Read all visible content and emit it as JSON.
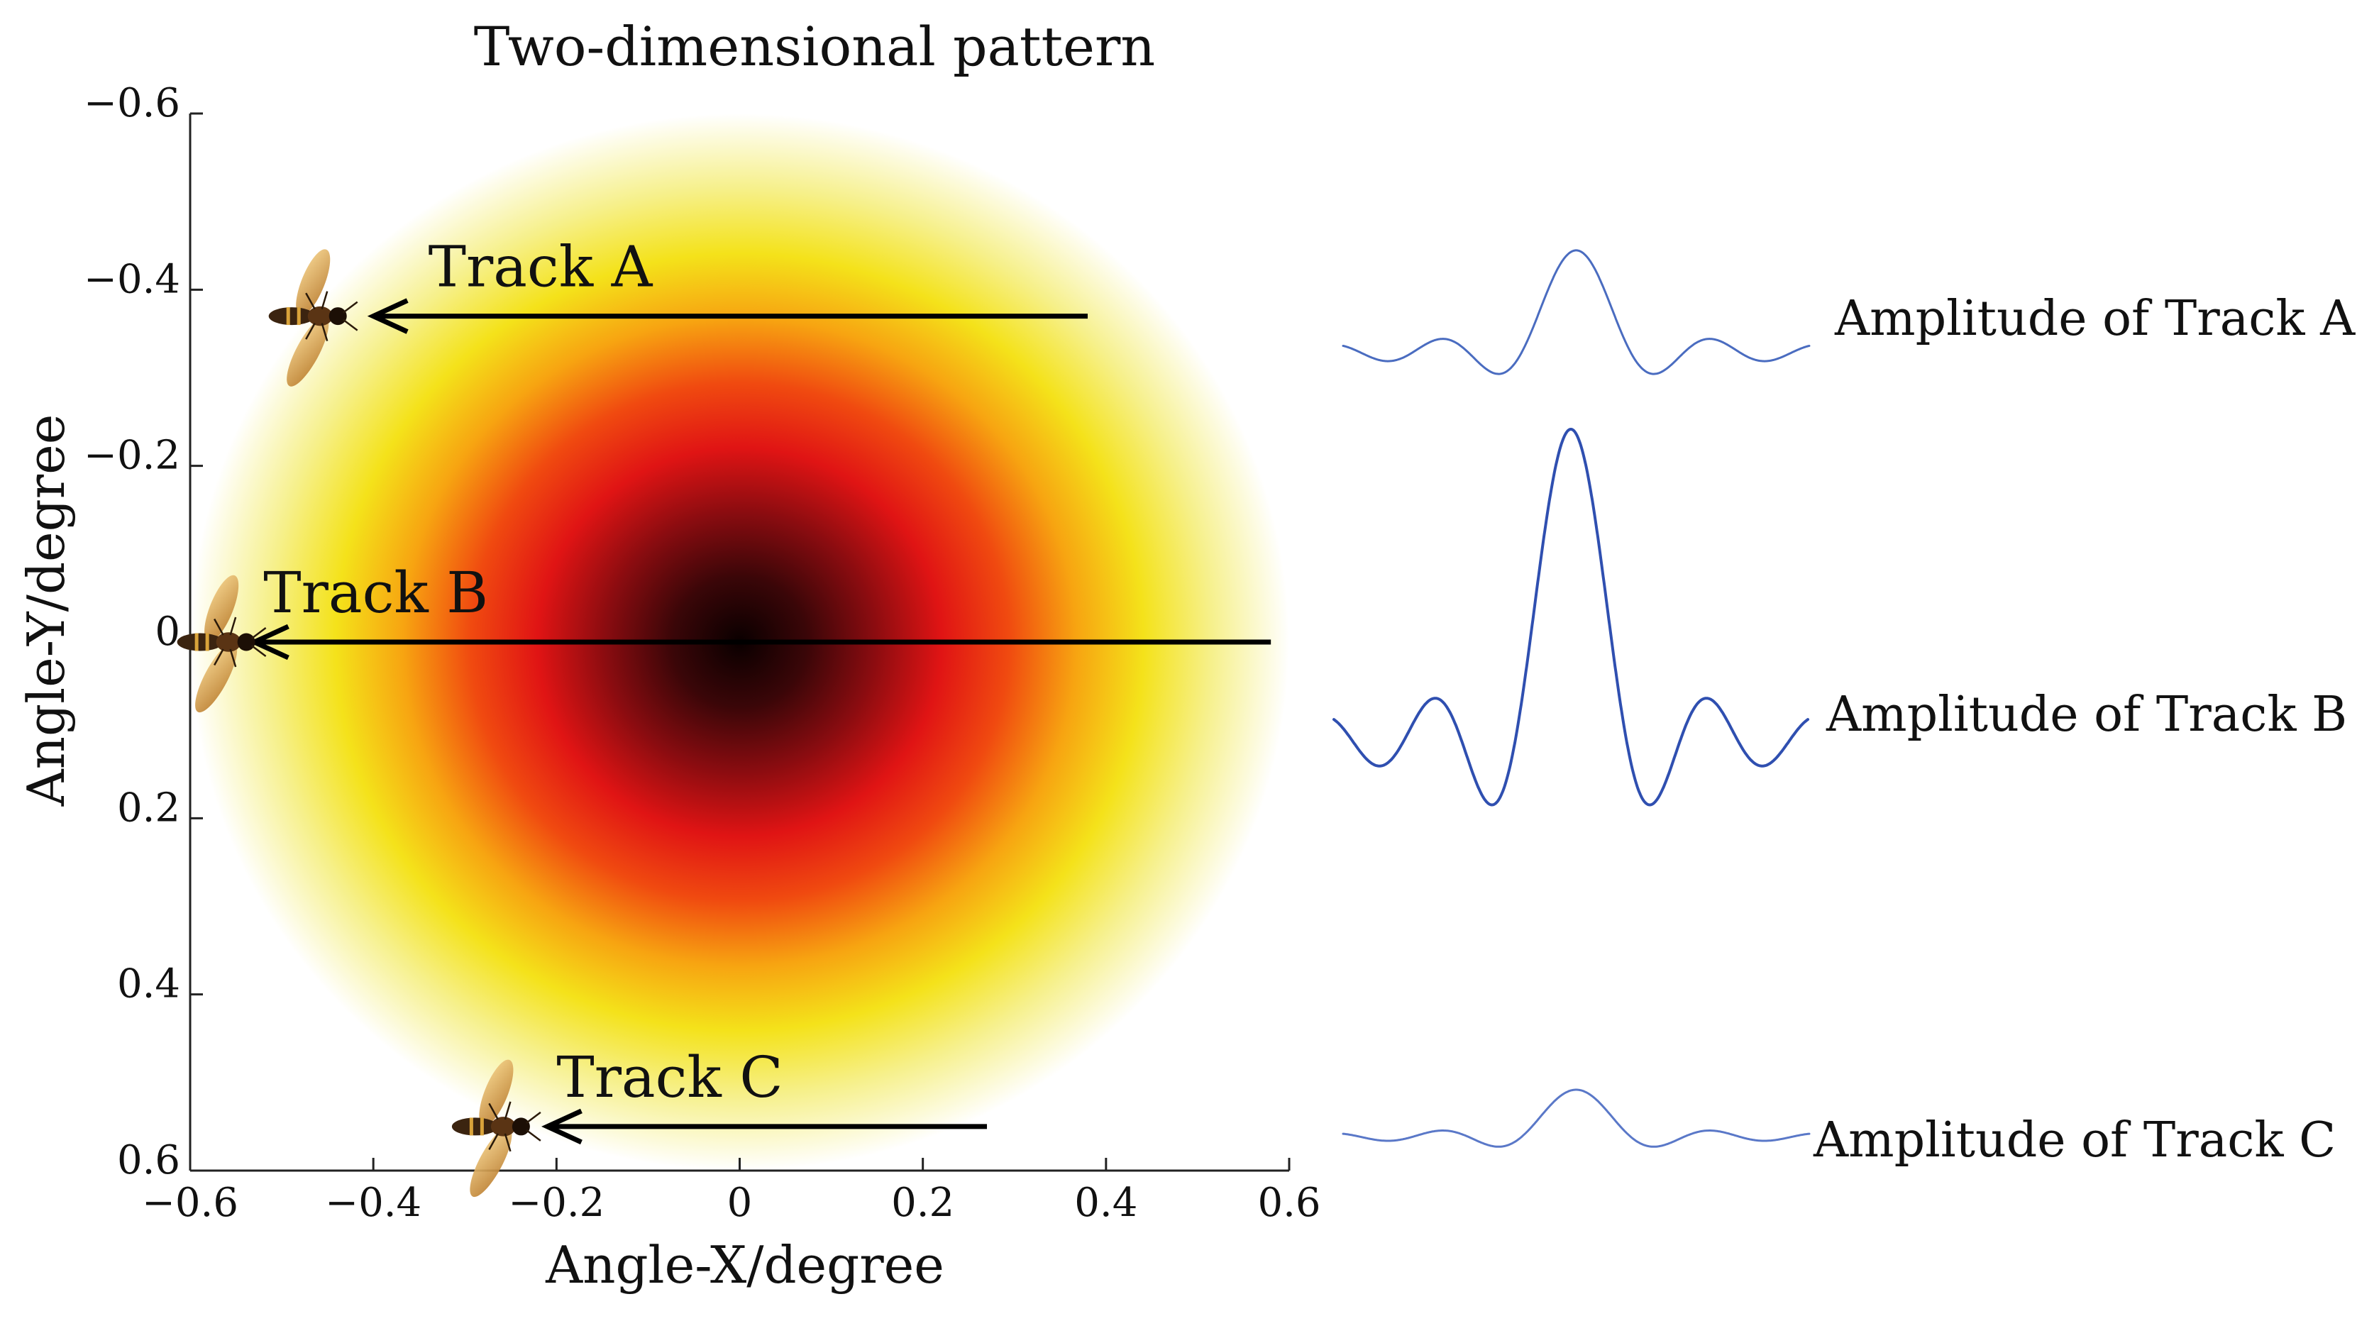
{
  "chart_data": [
    {
      "type": "heatmap",
      "title": "Two-dimensional pattern",
      "xlabel": "Angle-X/degree",
      "ylabel": "Angle-Y/degree",
      "xlim": [
        -0.6,
        0.6
      ],
      "ylim": [
        -0.6,
        0.6
      ],
      "y_axis_direction": "top-to-bottom",
      "xticks": [
        {
          "value": -0.6,
          "label": "−0.6"
        },
        {
          "value": -0.4,
          "label": "−0.4"
        },
        {
          "value": -0.2,
          "label": "−0.2"
        },
        {
          "value": 0,
          "label": "0"
        },
        {
          "value": 0.2,
          "label": "0.2"
        },
        {
          "value": 0.4,
          "label": "0.4"
        },
        {
          "value": 0.6,
          "label": "0.6"
        }
      ],
      "yticks": [
        {
          "value": -0.6,
          "label": "−0.6"
        },
        {
          "value": -0.4,
          "label": "−0.4"
        },
        {
          "value": -0.2,
          "label": "−0.2"
        },
        {
          "value": 0,
          "label": "0"
        },
        {
          "value": 0.2,
          "label": "0.2"
        },
        {
          "value": 0.4,
          "label": "0.4"
        },
        {
          "value": 0.6,
          "label": "0.6"
        }
      ],
      "pattern": {
        "center": [
          0,
          0
        ],
        "radius": 0.6,
        "colormap": [
          "#0a0000",
          "#3a0608",
          "#8a0c10",
          "#e01414",
          "#f04a10",
          "#f7a411",
          "#f4e21a",
          "#f6f08a",
          "#ffffff"
        ]
      },
      "tracks": [
        {
          "name": "Track A",
          "label": "Track A",
          "y": -0.37,
          "x_start": 0.38,
          "x_end": -0.4,
          "label_x": -0.34
        },
        {
          "name": "Track B",
          "label": "Track B",
          "y": 0.0,
          "x_start": 0.58,
          "x_end": -0.53,
          "label_x": -0.52
        },
        {
          "name": "Track C",
          "label": "Track C",
          "y": 0.55,
          "x_start": 0.27,
          "x_end": -0.21,
          "label_x": -0.2
        }
      ],
      "insects": [
        {
          "name": "insect-track-a",
          "x": -0.46,
          "y": -0.37
        },
        {
          "name": "insect-track-b",
          "x": -0.56,
          "y": 0.0
        },
        {
          "name": "insect-track-c",
          "x": -0.26,
          "y": 0.55
        }
      ]
    },
    {
      "type": "line",
      "description_source": "sinc-like amplitude profiles along each track",
      "function": "peak * sin(3*t)/(3*t)",
      "t_range": [
        -4.5,
        4.5
      ],
      "series": [
        {
          "name": "Amplitude of Track A",
          "label": "Amplitude of Track A",
          "peak": 0.45,
          "color": "#4a6cc0"
        },
        {
          "name": "Amplitude of Track B",
          "label": "Amplitude of Track B",
          "peak": 1.0,
          "color": "#2f4fb0"
        },
        {
          "name": "Amplitude of Track C",
          "label": "Amplitude of Track C",
          "peak": 0.22,
          "color": "#5a78c8"
        }
      ]
    }
  ]
}
